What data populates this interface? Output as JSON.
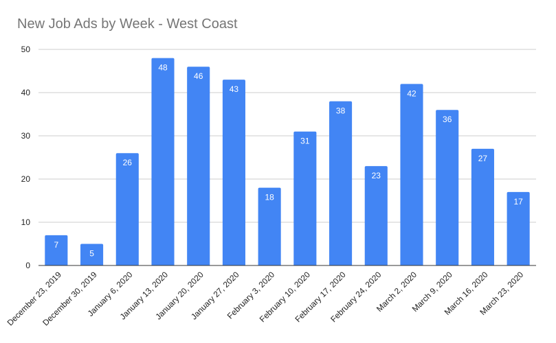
{
  "chart_data": {
    "type": "bar",
    "title": "New Job Ads by Week - West Coast",
    "xlabel": "",
    "ylabel": "",
    "categories": [
      "December 23, 2019",
      "December 30, 2019",
      "January 6, 2020",
      "January 13, 2020",
      "January 20, 2020",
      "January 27, 2020",
      "February 3, 2020",
      "February 10, 2020",
      "February 17, 2020",
      "February 24, 2020",
      "March 2, 2020",
      "March 9, 2020",
      "March 16, 2020",
      "March 23, 2020"
    ],
    "values": [
      7,
      5,
      26,
      48,
      46,
      43,
      18,
      31,
      38,
      23,
      42,
      36,
      27,
      17
    ],
    "ylim": [
      0,
      50
    ],
    "yticks": [
      0,
      10,
      20,
      30,
      40,
      50
    ],
    "grid": true,
    "legend": "none",
    "data_labels": true,
    "colors": {
      "bar": "#4285f4",
      "grid": "#cccccc",
      "baseline": "#333333",
      "title": "#757575",
      "tick_text": "#222222",
      "label_text": "#ffffff"
    }
  }
}
